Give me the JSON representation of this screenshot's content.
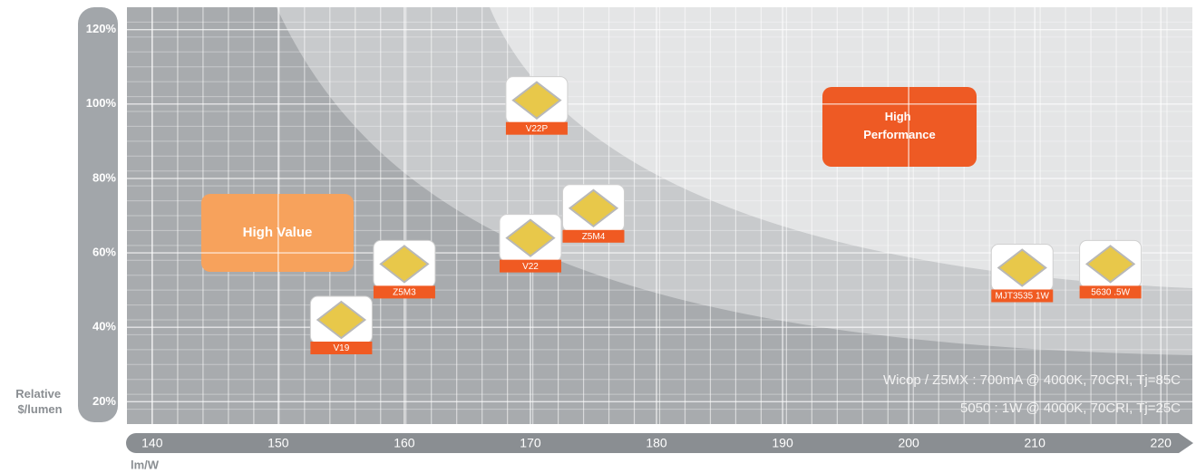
{
  "chart_data": {
    "type": "scatter",
    "x_label": "lm/W",
    "y_label": "Relative $/lumen",
    "points": [
      {
        "name": "V19",
        "x": 155,
        "y": 42
      },
      {
        "name": "Z5M3",
        "x": 160,
        "y": 57
      },
      {
        "name": "V22",
        "x": 170,
        "y": 64
      },
      {
        "name": "V22P",
        "x": 170.5,
        "y": 101
      },
      {
        "name": "Z5M4",
        "x": 175,
        "y": 72
      },
      {
        "name": "MJT3535 1W",
        "x": 209,
        "y": 56
      },
      {
        "name": "5630 .5W",
        "x": 216,
        "y": 57
      }
    ],
    "xlim": [
      138,
      222.5
    ],
    "ylim": [
      14,
      126
    ],
    "xticks": [
      140,
      150,
      160,
      170,
      180,
      190,
      200,
      210,
      220
    ],
    "yticks": [
      {
        "value": 20,
        "label": "20%"
      },
      {
        "value": 40,
        "label": "40%"
      },
      {
        "value": 60,
        "label": "60%"
      },
      {
        "value": 80,
        "label": "80%"
      },
      {
        "value": 100,
        "label": "100%"
      },
      {
        "value": 120,
        "label": "120%"
      }
    ],
    "regions": [
      "High Value",
      "High Performance"
    ],
    "annotations": [
      "Wicop / Z5MX : 700mA @ 4000K, 70CRI, Tj=85C",
      "5050 : 1W @ 4000K, 70CRI, Tj=25C"
    ],
    "marker_color": "#f05a22",
    "grid": true
  }
}
